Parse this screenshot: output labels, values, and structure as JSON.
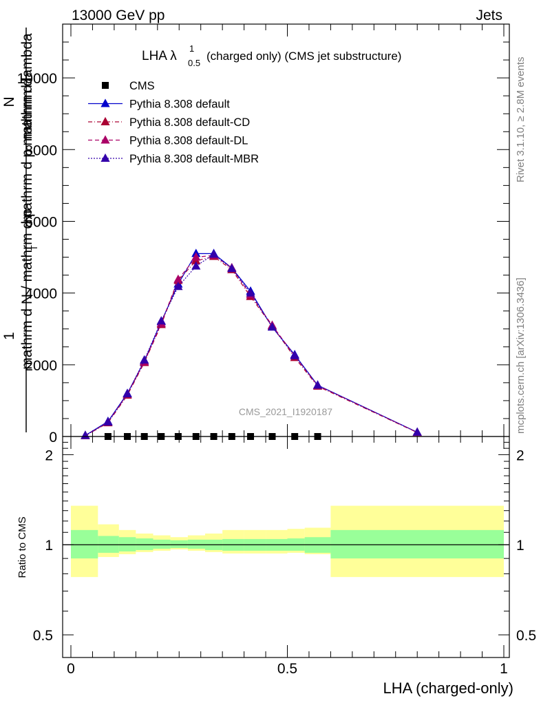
{
  "header": {
    "left": "13000 GeV pp",
    "right": "Jets"
  },
  "side_labels": {
    "rivet": "Rivet 3.1.10, ≥ 2.8M events",
    "mcplots": "mcplots.cern.ch [arXiv:1306.3436]"
  },
  "watermark": "CMS_2021_I1920187",
  "colors": {
    "data": "#000000",
    "default": "#0000cc",
    "cd": "#aa0033",
    "dl": "#aa0066",
    "mbr": "#3300aa",
    "band_inner": "#99ff99",
    "band_outer": "#ffff99"
  },
  "chart_data": [
    {
      "type": "line",
      "title": "LHA λ",
      "title_sup": "1",
      "title_sub": "0.5",
      "title_rest": "(charged only) (CMS jet substructure)",
      "ylabel_num_top": "1",
      "ylabel_num": "mathrm d",
      "ylabel_num2": "N",
      "ylabel_den": "mathrm d N / mathrm d p",
      "ylabel_den2": "mathrm d p",
      "ylabel_den3": "mathrm d lambda",
      "ylabel_sub": "T",
      "xlim": [
        0,
        1
      ],
      "ylim": [
        0,
        11500
      ],
      "yticks": [
        0,
        2000,
        4000,
        6000,
        8000,
        10000
      ],
      "ytick_labels": [
        "0",
        "2000",
        "4000",
        "6000",
        "8000",
        "10000"
      ],
      "x": [
        0.0333,
        0.0857,
        0.1304,
        0.1696,
        0.2087,
        0.2478,
        0.289,
        0.33,
        0.3717,
        0.415,
        0.465,
        0.517,
        0.57,
        0.8
      ],
      "legend": {
        "placement": "top-left",
        "entries": [
          "CMS",
          "Pythia 8.308 default",
          "Pythia 8.308 default-CD",
          "Pythia 8.308 default-DL",
          "Pythia 8.308 default-MBR"
        ]
      },
      "series": [
        {
          "name": "CMS",
          "marker": "square",
          "values": [
            null,
            0,
            0,
            0,
            0,
            0,
            0,
            0,
            0,
            0,
            0,
            0,
            0,
            null
          ]
        },
        {
          "name": "Pythia 8.308 default",
          "marker": "triangle",
          "line": "solid",
          "values": [
            30,
            420,
            1200,
            2100,
            3200,
            4250,
            5100,
            5100,
            4700,
            4050,
            3050,
            2280,
            1430,
            120
          ]
        },
        {
          "name": "Pythia 8.308 default-CD",
          "marker": "triangle",
          "line": "dashdot",
          "values": [
            20,
            380,
            1150,
            2060,
            3120,
            4350,
            4900,
            5020,
            4650,
            3900,
            3080,
            2200,
            1400,
            110
          ]
        },
        {
          "name": "Pythia 8.308 default-DL",
          "marker": "triangle",
          "line": "dashed",
          "values": [
            20,
            400,
            1180,
            2080,
            3150,
            4380,
            5000,
            5050,
            4700,
            3950,
            3100,
            2250,
            1420,
            115
          ]
        },
        {
          "name": "Pythia 8.308 default-MBR",
          "marker": "triangle",
          "line": "dotted",
          "values": [
            25,
            400,
            1190,
            2130,
            3220,
            4180,
            4750,
            5080,
            4680,
            4000,
            3050,
            2250,
            1430,
            118
          ]
        }
      ]
    },
    {
      "type": "area",
      "ylabel": "Ratio to CMS",
      "xlabel": "LHA (charged-only)",
      "xlim": [
        0,
        1
      ],
      "xticks": [
        0,
        0.5,
        1
      ],
      "xtick_labels": [
        "0",
        "0.5",
        "1"
      ],
      "ylog": true,
      "ylim": [
        0.42,
        2.3
      ],
      "yticks": [
        0.5,
        1,
        2
      ],
      "ytick_labels": [
        "0.5",
        "1",
        "2"
      ],
      "bins": [
        0.0,
        0.0625,
        0.111,
        0.15,
        0.19,
        0.23,
        0.27,
        0.31,
        0.35,
        0.4,
        0.45,
        0.5,
        0.54,
        0.6,
        1.0
      ],
      "inner_lo": [
        0.9,
        0.94,
        0.95,
        0.96,
        0.97,
        0.975,
        0.97,
        0.96,
        0.955,
        0.955,
        0.955,
        0.955,
        0.94,
        0.9
      ],
      "inner_hi": [
        1.12,
        1.07,
        1.06,
        1.05,
        1.04,
        1.035,
        1.04,
        1.04,
        1.045,
        1.045,
        1.045,
        1.05,
        1.06,
        1.12
      ],
      "outer_lo": [
        0.78,
        0.91,
        0.93,
        0.945,
        0.955,
        0.965,
        0.955,
        0.945,
        0.935,
        0.935,
        0.935,
        0.94,
        0.93,
        0.78
      ],
      "outer_hi": [
        1.35,
        1.17,
        1.12,
        1.09,
        1.075,
        1.06,
        1.075,
        1.09,
        1.12,
        1.12,
        1.12,
        1.13,
        1.14,
        1.35
      ],
      "ratio_line": 1
    }
  ]
}
